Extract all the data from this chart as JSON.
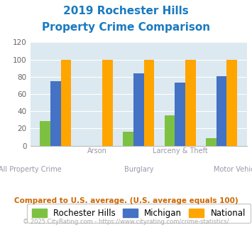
{
  "title_line1": "2019 Rochester Hills",
  "title_line2": "Property Crime Comparison",
  "title_color": "#1a7abf",
  "categories": [
    "All Property Crime",
    "Arson",
    "Burglary",
    "Larceny & Theft",
    "Motor Vehicle Theft"
  ],
  "rochester_hills": [
    29,
    0,
    16,
    35,
    9
  ],
  "michigan": [
    75,
    0,
    84,
    73,
    81
  ],
  "national": [
    100,
    100,
    100,
    100,
    100
  ],
  "color_rochester": "#7dc142",
  "color_michigan": "#4472c4",
  "color_national": "#ffa500",
  "ylim": [
    0,
    120
  ],
  "yticks": [
    0,
    20,
    40,
    60,
    80,
    100,
    120
  ],
  "bg_color": "#dce9f0",
  "legend_labels": [
    "Rochester Hills",
    "Michigan",
    "National"
  ],
  "footer_text": "Compared to U.S. average. (U.S. average equals 100)",
  "credit_text": "© 2025 CityRating.com - https://www.cityrating.com/crime-statistics/",
  "footer_color": "#cc6600",
  "credit_color": "#aaaaaa",
  "cat_top": [
    "",
    "Arson",
    "",
    "Larceny & Theft",
    ""
  ],
  "cat_bot": [
    "All Property Crime",
    "",
    "Burglary",
    "",
    "Motor Vehicle Theft"
  ]
}
